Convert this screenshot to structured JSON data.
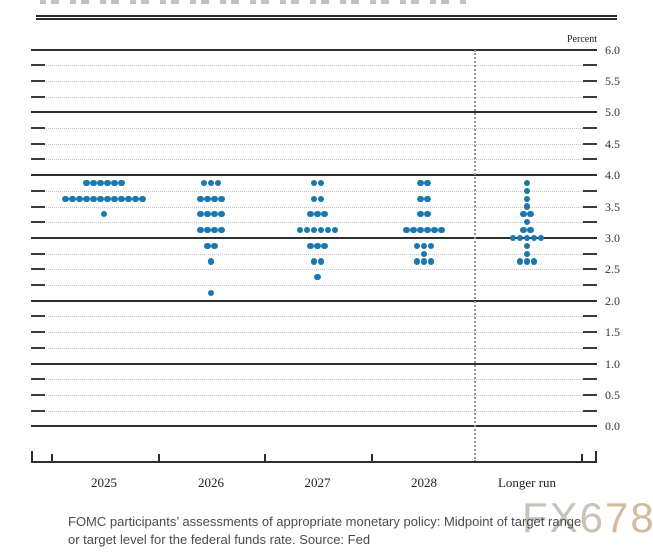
{
  "chart_data": {
    "type": "scatter",
    "subtype": "fomc-dot-plot",
    "unit_label": "Percent",
    "categories": [
      "2025",
      "2026",
      "2027",
      "2028",
      "Longer run"
    ],
    "series": [
      {
        "name": "2025",
        "dots": [
          {
            "rate": 3.875,
            "count": 6
          },
          {
            "rate": 3.625,
            "count": 12
          },
          {
            "rate": 3.375,
            "count": 1
          }
        ]
      },
      {
        "name": "2026",
        "dots": [
          {
            "rate": 3.875,
            "count": 3
          },
          {
            "rate": 3.625,
            "count": 4
          },
          {
            "rate": 3.375,
            "count": 4
          },
          {
            "rate": 3.125,
            "count": 4
          },
          {
            "rate": 2.875,
            "count": 2
          },
          {
            "rate": 2.625,
            "count": 1
          },
          {
            "rate": 2.125,
            "count": 1
          }
        ]
      },
      {
        "name": "2027",
        "dots": [
          {
            "rate": 3.875,
            "count": 2
          },
          {
            "rate": 3.625,
            "count": 2
          },
          {
            "rate": 3.375,
            "count": 3
          },
          {
            "rate": 3.125,
            "count": 6
          },
          {
            "rate": 2.875,
            "count": 3
          },
          {
            "rate": 2.625,
            "count": 2
          },
          {
            "rate": 2.375,
            "count": 1
          }
        ]
      },
      {
        "name": "2028",
        "dots": [
          {
            "rate": 3.875,
            "count": 2
          },
          {
            "rate": 3.625,
            "count": 2
          },
          {
            "rate": 3.375,
            "count": 2
          },
          {
            "rate": 3.125,
            "count": 6
          },
          {
            "rate": 2.875,
            "count": 3
          },
          {
            "rate": 2.75,
            "count": 1
          },
          {
            "rate": 2.625,
            "count": 3
          }
        ]
      },
      {
        "name": "Longer run",
        "dots": [
          {
            "rate": 3.875,
            "count": 1
          },
          {
            "rate": 3.75,
            "count": 1
          },
          {
            "rate": 3.625,
            "count": 1
          },
          {
            "rate": 3.5,
            "count": 1
          },
          {
            "rate": 3.375,
            "count": 2
          },
          {
            "rate": 3.25,
            "count": 1
          },
          {
            "rate": 3.125,
            "count": 2
          },
          {
            "rate": 3.0,
            "count": 5
          },
          {
            "rate": 2.875,
            "count": 1
          },
          {
            "rate": 2.75,
            "count": 1
          },
          {
            "rate": 2.625,
            "count": 3
          }
        ]
      }
    ],
    "ylim": [
      0.0,
      6.0
    ],
    "ytick_labels": [
      "6.0",
      "5.5",
      "5.0",
      "4.5",
      "4.0",
      "3.5",
      "3.0",
      "2.5",
      "2.0",
      "1.5",
      "1.0",
      "0.5",
      "0.0"
    ],
    "grid_minor_step": 0.25,
    "grid_major_step": 1.0,
    "legend_position": "none",
    "dot_color": "#1a78ae",
    "separator_before_category": "Longer run"
  },
  "caption": {
    "line1": "FOMC participants’ assessments of appropriate monetary policy: Midpoint of target range",
    "line2": "or target level for the federal funds rate. Source: Fed"
  },
  "watermark": {
    "part1": "FX6",
    "part2": "78",
    "color1": "#c8c1b6",
    "color2": "#d4bb9e"
  }
}
